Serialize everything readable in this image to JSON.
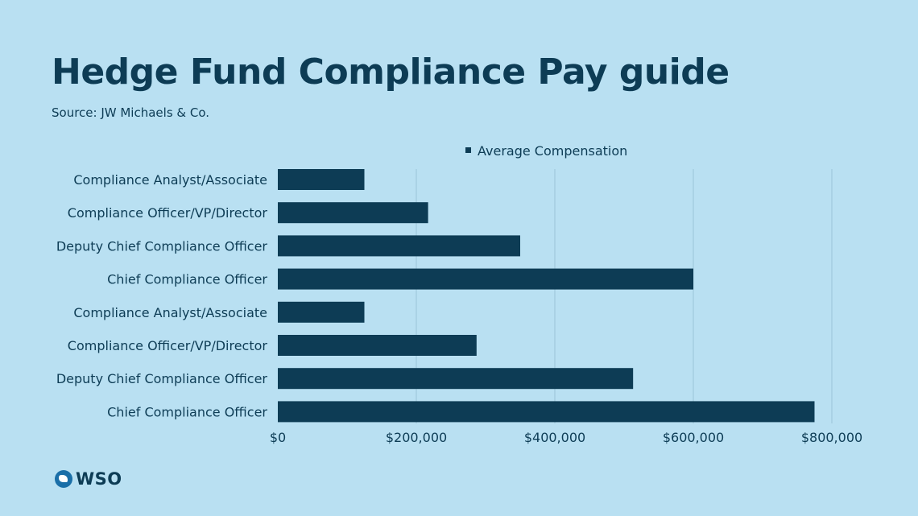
{
  "page": {
    "title": "Hedge Fund Compliance Pay guide",
    "subtitle": "Source: JW Michaels & Co.",
    "logo_text": "WSO",
    "logo_icon": "globe-icon"
  },
  "colors": {
    "background": "#b9e0f2",
    "bar": "#0d3c55",
    "text": "#0d3c55",
    "gridline": "#9cc4d8"
  },
  "chart_data": {
    "type": "bar",
    "orientation": "horizontal",
    "categories": [
      "Compliance Analyst/Associate",
      "Compliance Officer/VP/Director",
      "Deputy Chief Compliance Officer",
      "Chief Compliance Officer",
      "Compliance Analyst/Associate",
      "Compliance Officer/VP/Director",
      "Deputy Chief Compliance Officer",
      "Chief Compliance Officer"
    ],
    "series": [
      {
        "name": "Average Compensation",
        "values": [
          125000,
          217000,
          350000,
          600000,
          125000,
          287000,
          513000,
          775000
        ]
      }
    ],
    "xlim": [
      0,
      800000
    ],
    "xticks": [
      0,
      200000,
      400000,
      600000,
      800000
    ],
    "xtick_labels": [
      "$0",
      "$200,000",
      "$400,000",
      "$600,000",
      "$800,000"
    ],
    "xlabel": "",
    "ylabel": "",
    "grid": "vertical",
    "legend": "top-center"
  }
}
